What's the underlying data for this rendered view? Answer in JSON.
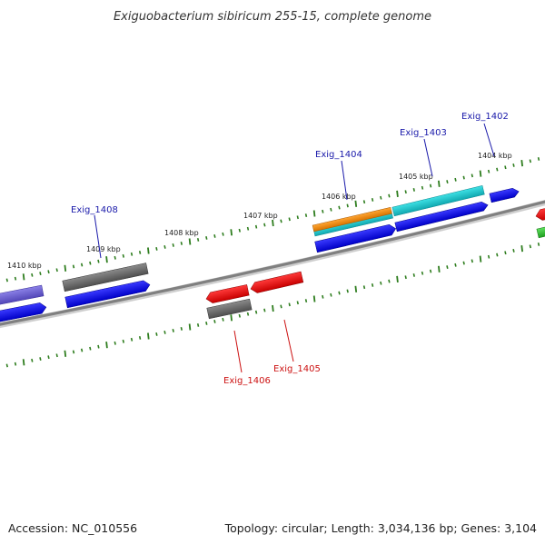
{
  "title": "Exiguobacterium sibiricum 255-15, complete genome",
  "footer": {
    "accession": "Accession: NC_010556",
    "summary": "Topology: circular; Length: 3,034,136 bp; Genes: 3,104"
  },
  "colors": {
    "backbone": "#888888",
    "tick": "#2e7d1e",
    "forward_label": "#1a1aaa",
    "reverse_label": "#cc1111",
    "blue": "#0a0ae6",
    "gray": "#666666",
    "red": "#e00000",
    "cyan": "#17c9cf",
    "orange": "#f08c12",
    "violet": "#6b5fd0",
    "green": "#2fc42f"
  },
  "kbp_labels": [
    "1404 kbp",
    "1405 kbp",
    "1406 kbp",
    "1407 kbp",
    "1408 kbp",
    "1409 kbp",
    "1410 kbp"
  ],
  "genes": [
    {
      "name": "Exig_1402",
      "strand": "forward"
    },
    {
      "name": "Exig_1403",
      "strand": "forward"
    },
    {
      "name": "Exig_1404",
      "strand": "forward"
    },
    {
      "name": "Exig_1408",
      "strand": "forward"
    },
    {
      "name": "Exig_1405",
      "strand": "reverse"
    },
    {
      "name": "Exig_1406",
      "strand": "reverse"
    }
  ]
}
